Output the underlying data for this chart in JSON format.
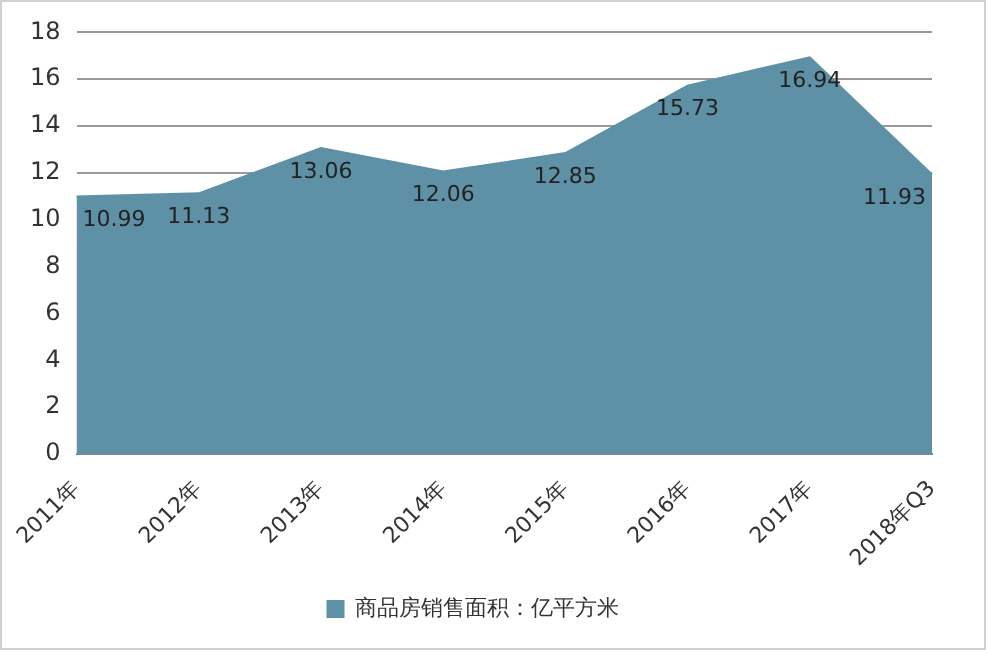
{
  "chart_data": {
    "type": "area",
    "categories": [
      "2011年",
      "2012年",
      "2013年",
      "2014年",
      "2015年",
      "2016年",
      "2017年",
      "2018年Q3"
    ],
    "series": [
      {
        "name": "商品房销售面积：亿平方米",
        "color": "#5e91a5",
        "values": [
          10.99,
          11.13,
          13.06,
          12.06,
          12.85,
          15.73,
          16.94,
          11.93
        ]
      }
    ],
    "ylim": [
      0,
      18
    ],
    "yticks": [
      0,
      2,
      4,
      6,
      8,
      10,
      12,
      14,
      16,
      18
    ],
    "grid": "y",
    "legend": "bottom",
    "data_labels": true
  }
}
